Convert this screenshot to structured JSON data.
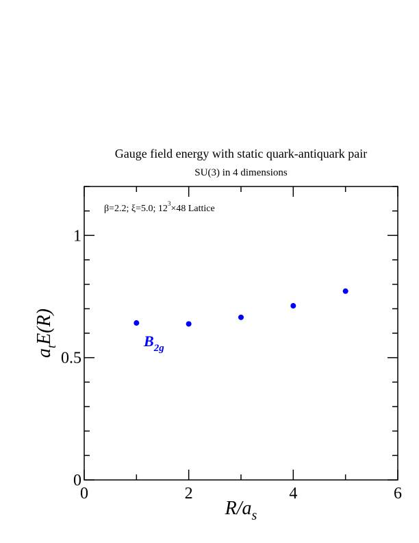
{
  "chart_data": {
    "type": "scatter",
    "title": "Gauge field energy with static quark-antiquark pair",
    "subtitle": "SU(3) in 4 dimensions",
    "annotation": {
      "lead": "β=2.2;  ξ=5.0;  12",
      "sup": "3",
      "tail": "×48 Lattice"
    },
    "xlabel": {
      "main": "R/a",
      "sub": "s"
    },
    "ylabel": {
      "pre": "a",
      "pre_sub": "t",
      "main": "E(R)"
    },
    "xlim": [
      0,
      6
    ],
    "ylim": [
      0,
      1.2
    ],
    "x_ticks": [
      0,
      2,
      4,
      6
    ],
    "y_ticks": [
      0,
      0.5,
      1
    ],
    "x_tick_labels": [
      "0",
      "2",
      "4",
      "6"
    ],
    "y_tick_labels": [
      "0",
      "0.5",
      "1"
    ],
    "series": [
      {
        "label_main": "B",
        "label_sub": "2g",
        "color": "#0000ff",
        "x": [
          1,
          2,
          3,
          4,
          5
        ],
        "y": [
          0.642,
          0.638,
          0.665,
          0.712,
          0.772
        ]
      }
    ]
  }
}
